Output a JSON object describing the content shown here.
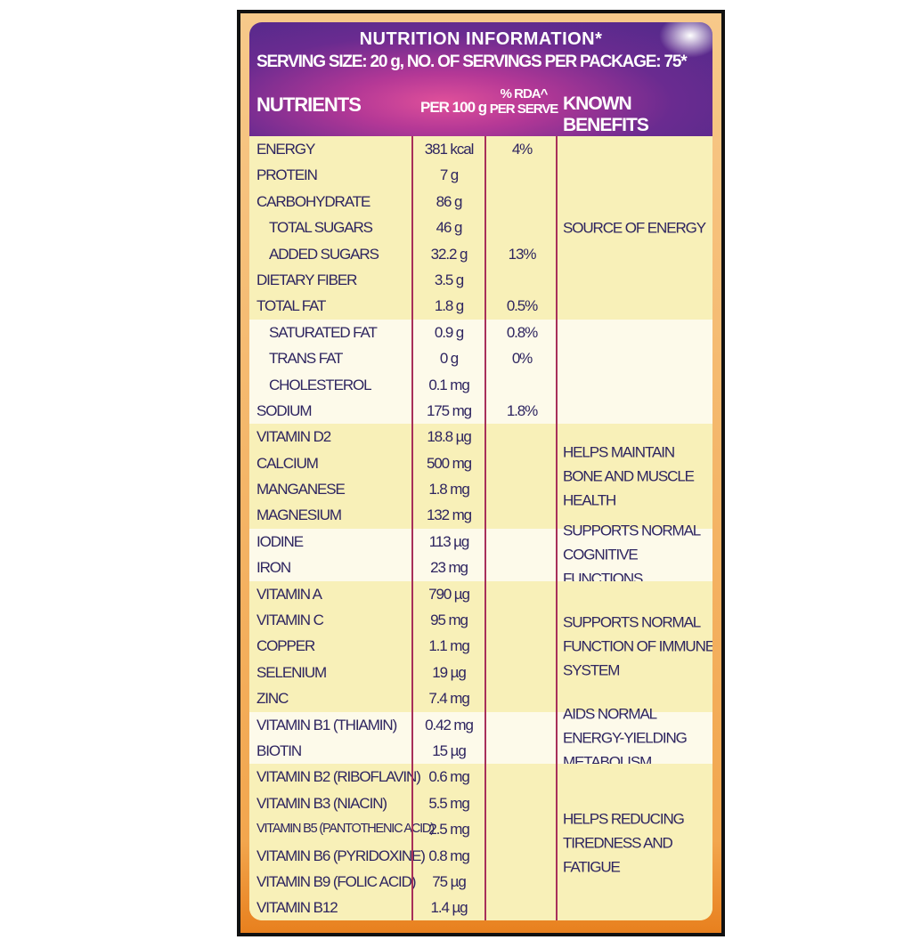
{
  "title": "NUTRITION INFORMATION*",
  "serving": "SERVING SIZE: 20 g, NO. OF SERVINGS PER PACKAGE: 75*",
  "columns": {
    "nutrients": "NUTRIENTS",
    "per100": "PER 100 g",
    "rda1": "% RDA^",
    "rda2": "PER SERVE",
    "benefits": "KNOWN BENEFITS"
  },
  "colors": {
    "header": "#5a2a8c",
    "accent": "#d84a98",
    "row_yellow": "#f8f0b8",
    "row_pale": "#fdfaea",
    "text": "#2e2560",
    "divider": "#a8305a",
    "border": "#f2a64e"
  },
  "groups": [
    {
      "benefit": "SOURCE OF ENERGY",
      "rows": [
        {
          "name": "ENERGY",
          "per100": "381 kcal",
          "rda": "4%"
        },
        {
          "name": "PROTEIN",
          "per100": "7 g",
          "rda": ""
        },
        {
          "name": "CARBOHYDRATE",
          "per100": "86 g",
          "rda": ""
        },
        {
          "name": "TOTAL SUGARS",
          "per100": "46 g",
          "rda": "",
          "indent": true
        },
        {
          "name": "ADDED SUGARS",
          "per100": "32.2 g",
          "rda": "13%",
          "indent": true
        },
        {
          "name": "DIETARY FIBER",
          "per100": "3.5 g",
          "rda": ""
        },
        {
          "name": "TOTAL FAT",
          "per100": "1.8 g",
          "rda": "0.5%"
        }
      ]
    },
    {
      "benefit": "",
      "rows": [
        {
          "name": "SATURATED FAT",
          "per100": "0.9 g",
          "rda": "0.8%",
          "indent": true
        },
        {
          "name": "TRANS FAT",
          "per100": "0 g",
          "rda": "0%",
          "indent": true
        },
        {
          "name": "CHOLESTEROL",
          "per100": "0.1 mg",
          "rda": "",
          "indent": true
        },
        {
          "name": "SODIUM",
          "per100": "175 mg",
          "rda": "1.8%"
        }
      ]
    },
    {
      "benefit": "HELPS MAINTAIN BONE AND MUSCLE HEALTH",
      "rows": [
        {
          "name": "VITAMIN D2",
          "per100": "18.8 µg",
          "rda": ""
        },
        {
          "name": "CALCIUM",
          "per100": "500 mg",
          "rda": ""
        },
        {
          "name": "MANGANESE",
          "per100": "1.8 mg",
          "rda": ""
        },
        {
          "name": "MAGNESIUM",
          "per100": "132 mg",
          "rda": ""
        }
      ]
    },
    {
      "benefit": "SUPPORTS NORMAL COGNITIVE FUNCTIONS",
      "rows": [
        {
          "name": "IODINE",
          "per100": "113 µg",
          "rda": ""
        },
        {
          "name": "IRON",
          "per100": "23 mg",
          "rda": ""
        }
      ]
    },
    {
      "benefit": "SUPPORTS NORMAL FUNCTION OF IMMUNE SYSTEM",
      "rows": [
        {
          "name": "VITAMIN A",
          "per100": "790 µg",
          "rda": ""
        },
        {
          "name": "VITAMIN C",
          "per100": "95 mg",
          "rda": ""
        },
        {
          "name": "COPPER",
          "per100": "1.1 mg",
          "rda": ""
        },
        {
          "name": "SELENIUM",
          "per100": "19 µg",
          "rda": ""
        },
        {
          "name": "ZINC",
          "per100": "7.4 mg",
          "rda": ""
        }
      ]
    },
    {
      "benefit": "AIDS NORMAL ENERGY-YIELDING METABOLISM",
      "rows": [
        {
          "name": "VITAMIN B1 (THIAMIN)",
          "per100": "0.42 mg",
          "rda": ""
        },
        {
          "name": "BIOTIN",
          "per100": "15 µg",
          "rda": ""
        }
      ]
    },
    {
      "benefit": "HELPS REDUCING TIREDNESS AND FATIGUE",
      "rows": [
        {
          "name": "VITAMIN B2 (RIBOFLAVIN)",
          "per100": "0.6 mg",
          "rda": ""
        },
        {
          "name": "VITAMIN B3 (NIACIN)",
          "per100": "5.5 mg",
          "rda": ""
        },
        {
          "name": "VITAMIN B5 (PANTOTHENIC ACID)",
          "per100": "2.5 mg",
          "rda": "",
          "small": true
        },
        {
          "name": "VITAMIN B6 (PYRIDOXINE)",
          "per100": "0.8 mg",
          "rda": ""
        },
        {
          "name": "VITAMIN B9 (FOLIC ACID)",
          "per100": "75 µg",
          "rda": ""
        },
        {
          "name": "VITAMIN B12",
          "per100": "1.4 µg",
          "rda": ""
        }
      ]
    }
  ]
}
